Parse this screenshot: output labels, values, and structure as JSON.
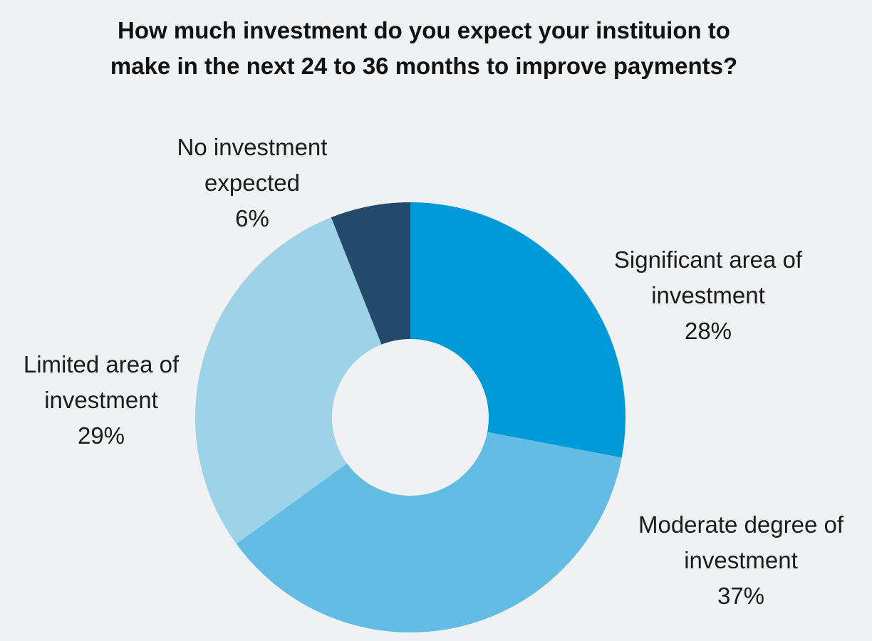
{
  "chart_data": {
    "type": "pie",
    "title_lines": [
      "How much investment do you expect your instituion to",
      "make in the next 24 to 36 months to improve payments?"
    ],
    "slices": [
      {
        "label_lines": [
          "Significant area of",
          "investment"
        ],
        "value": 28,
        "value_label": "28%",
        "color": "#009ad9"
      },
      {
        "label_lines": [
          "Moderate degree of",
          "investment"
        ],
        "value": 37,
        "value_label": "37%",
        "color": "#63bce3"
      },
      {
        "label_lines": [
          "Limited area of",
          "investment"
        ],
        "value": 29,
        "value_label": "29%",
        "color": "#9dd2e9"
      },
      {
        "label_lines": [
          "No investment",
          "expected"
        ],
        "value": 6,
        "value_label": "6%",
        "color": "#24496b"
      }
    ],
    "donut": true,
    "legend": "none"
  }
}
